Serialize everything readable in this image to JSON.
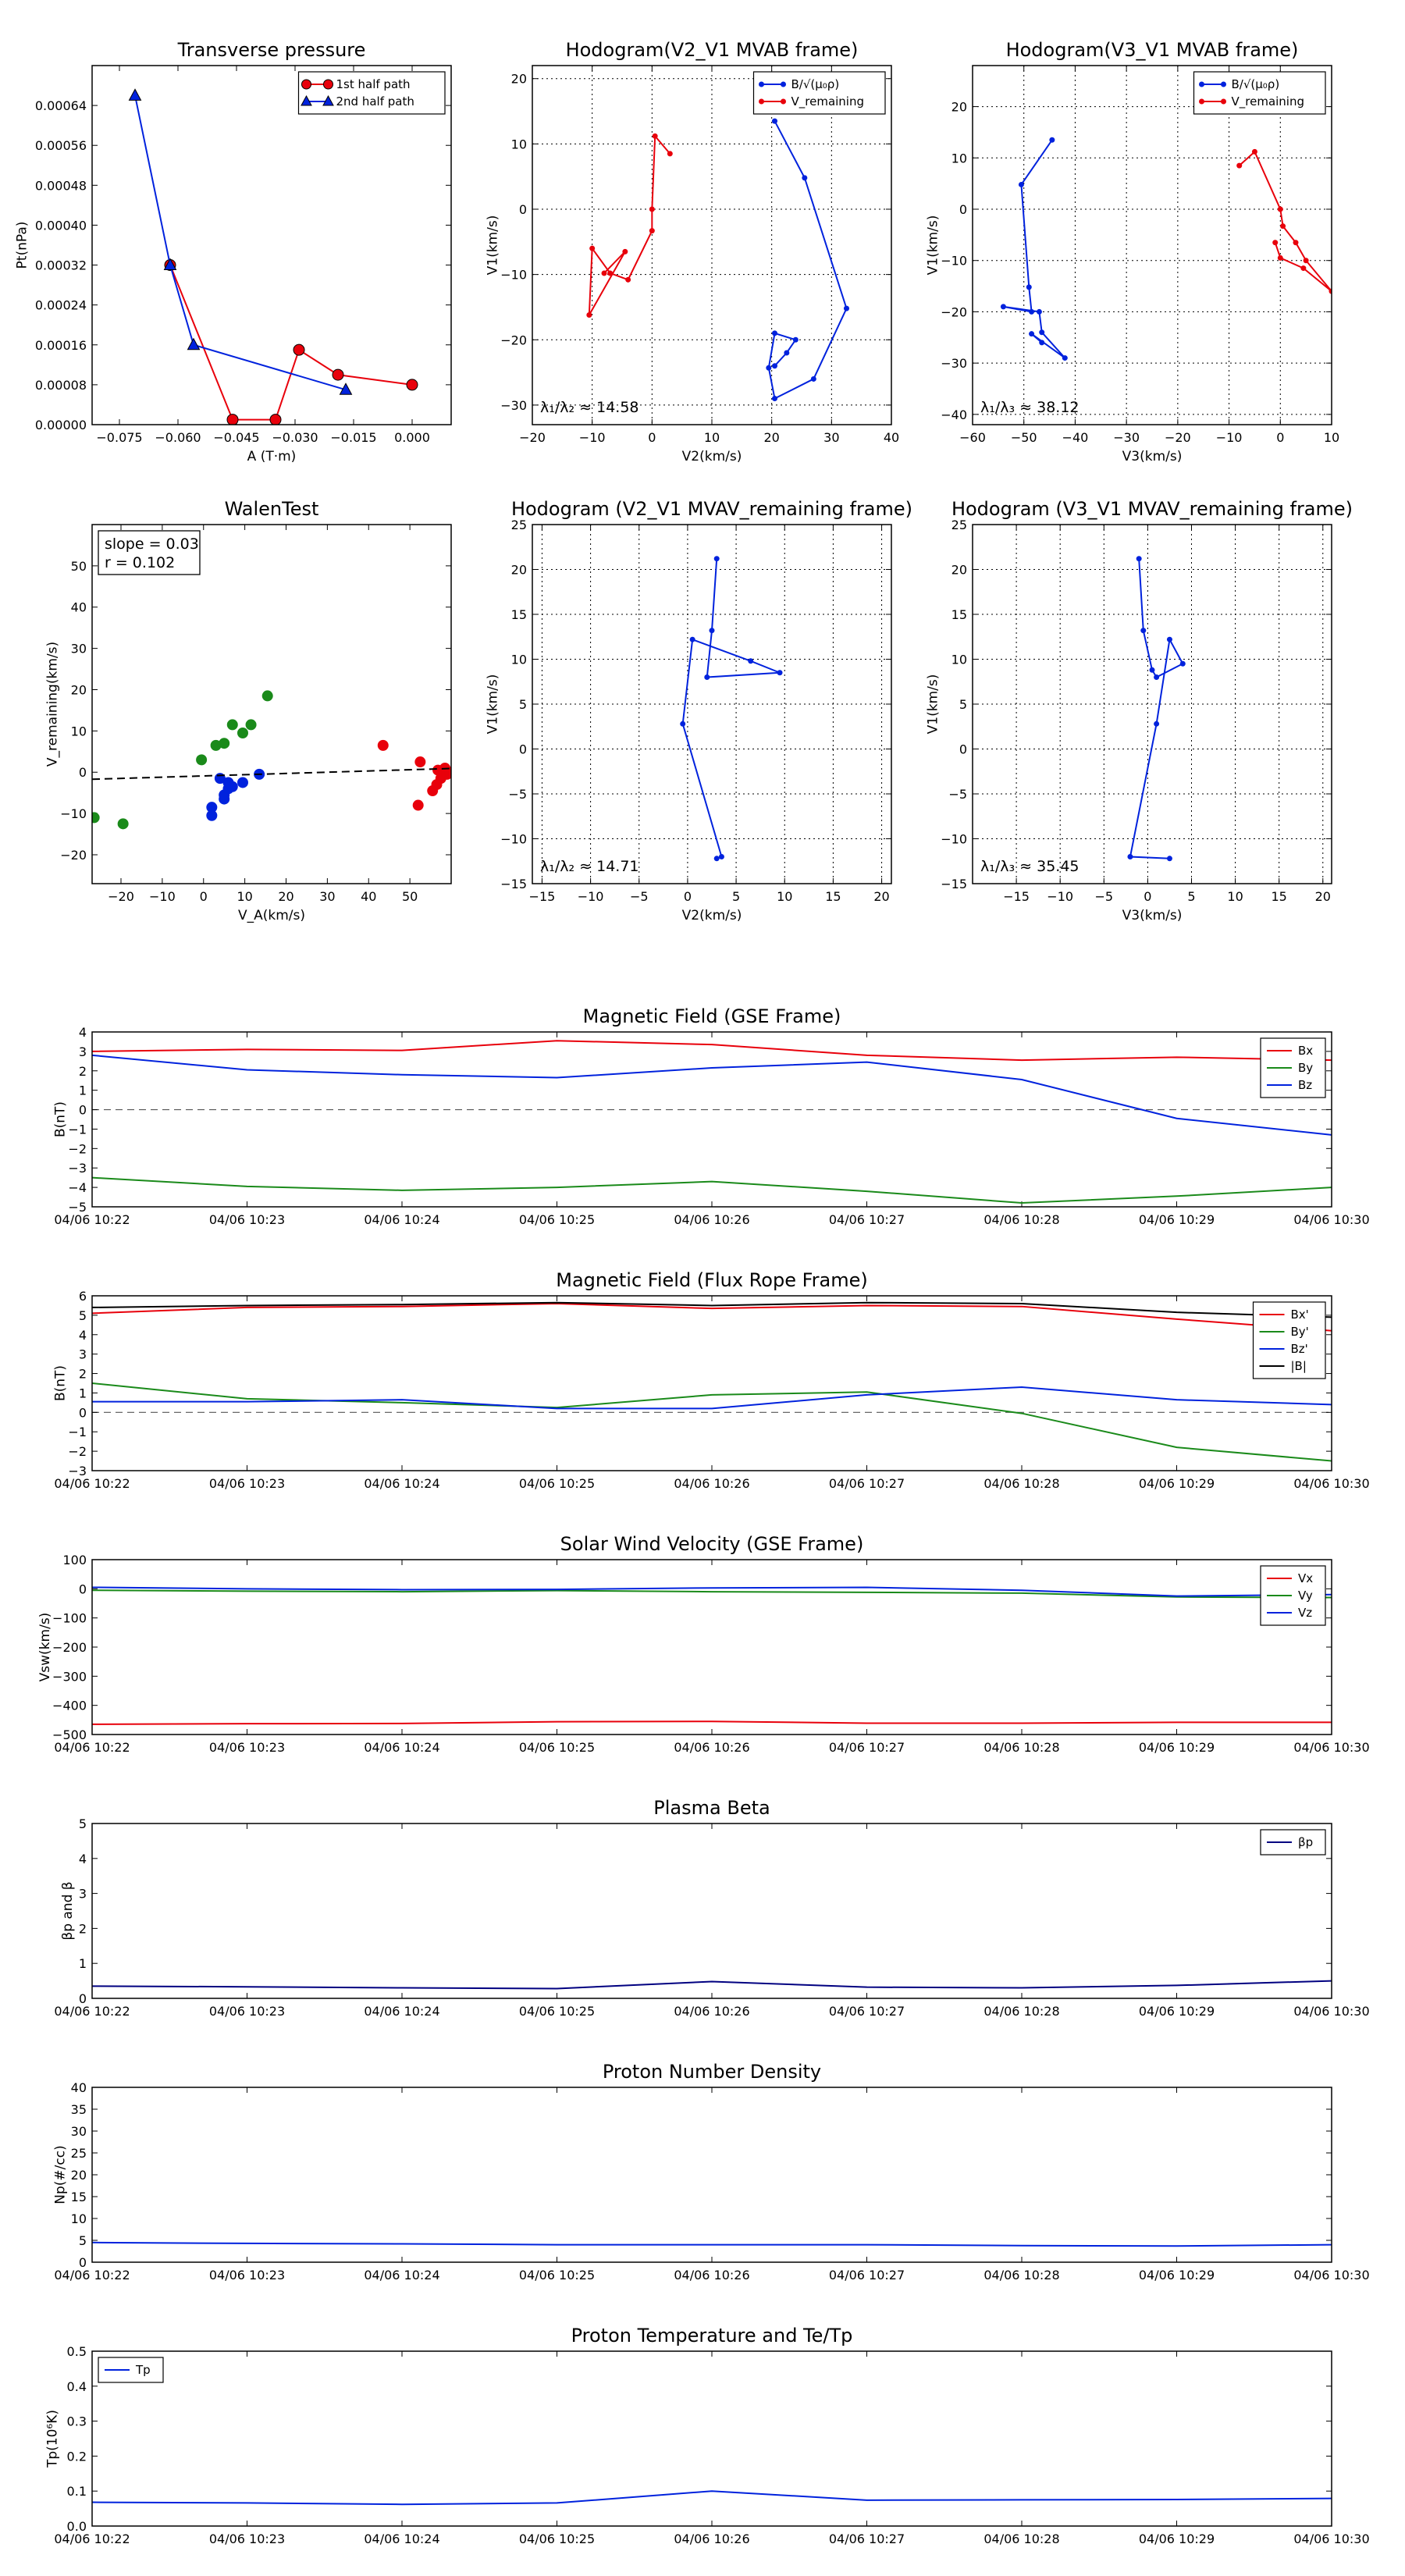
{
  "figure": {
    "background": "#ffffff"
  },
  "colors": {
    "red": "#e8000b",
    "blue": "#0022dd",
    "green": "#1a8a1a",
    "black": "#000000",
    "navy": "#000080"
  },
  "chart_data": [
    {
      "id": "tp",
      "type": "scatter",
      "title": "Transverse pressure",
      "xlabel": "A (T·m)",
      "ylabel": "Pt(nPa)",
      "xlim": [
        -0.082,
        0.01
      ],
      "ylim": [
        0,
        0.00072
      ],
      "xticks": [
        -0.075,
        -0.06,
        -0.045,
        -0.03,
        -0.015,
        0.0
      ],
      "xticklabels": [
        "−0.075",
        "−0.060",
        "−0.045",
        "−0.030",
        "−0.015",
        "0.000"
      ],
      "yticks": [
        0,
        8e-05,
        0.00016,
        0.00024,
        0.00032,
        0.0004,
        0.00048,
        0.00056,
        0.00064
      ],
      "yticklabels": [
        "0.00000",
        "0.00008",
        "0.00016",
        "0.00024",
        "0.00032",
        "0.00040",
        "0.00048",
        "0.00056",
        "0.00064"
      ],
      "grid": false,
      "legend": "top-right",
      "series": [
        {
          "name": "1st half path",
          "color": "#e8000b",
          "marker": "circle",
          "line": true,
          "x": [
            -0.062,
            -0.046,
            -0.035,
            -0.029,
            -0.019,
            0.0
          ],
          "y": [
            0.00032,
            1e-05,
            1e-05,
            0.00015,
            0.0001,
            8e-05
          ]
        },
        {
          "name": "2nd half path",
          "color": "#0022dd",
          "marker": "triangle",
          "line": true,
          "x": [
            -0.071,
            -0.062,
            -0.056,
            -0.017
          ],
          "y": [
            0.00066,
            0.00032,
            0.00016,
            7e-05
          ]
        }
      ]
    },
    {
      "id": "h1",
      "type": "line",
      "title": "Hodogram(V2_V1 MVAB frame)",
      "xlabel": "V2(km/s)",
      "ylabel": "V1(km/s)",
      "xlim": [
        -20,
        40
      ],
      "ylim": [
        -33,
        22
      ],
      "xticks": [
        -20,
        -10,
        0,
        10,
        20,
        30,
        40
      ],
      "xticklabels": [
        "−20",
        "−10",
        "0",
        "10",
        "20",
        "30",
        "40"
      ],
      "yticks": [
        -30,
        -20,
        -10,
        0,
        10,
        20
      ],
      "yticklabels": [
        "−30",
        "−20",
        "−10",
        "0",
        "10",
        "20"
      ],
      "grid": true,
      "legend": "top-right",
      "annotation": "λ₁/λ₂ ≈ 14.58",
      "series": [
        {
          "name": "B/√(μ₀ρ)",
          "color": "#0022dd",
          "marker": "dot",
          "x": [
            20.5,
            25.5,
            32.5,
            27.0,
            20.5,
            19.5,
            20.5,
            24.0,
            22.5,
            20.5
          ],
          "y": [
            13.5,
            4.8,
            -15.2,
            -26.0,
            -29.0,
            -24.3,
            -19.0,
            -20.0,
            -22.0,
            -24.0
          ]
        },
        {
          "name": "V_remaining",
          "color": "#e8000b",
          "marker": "dot",
          "x": [
            3.0,
            0.5,
            0.0,
            0.0,
            -4.0,
            -7.0,
            -10.0,
            -10.5,
            -4.5,
            -8.0
          ],
          "y": [
            8.5,
            11.2,
            0.0,
            -3.3,
            -10.8,
            -9.8,
            -6.0,
            -16.2,
            -6.5,
            -9.8
          ]
        }
      ]
    },
    {
      "id": "h2",
      "type": "line",
      "title": "Hodogram(V3_V1 MVAB frame)",
      "xlabel": "V3(km/s)",
      "ylabel": "V1(km/s)",
      "xlim": [
        -60,
        10
      ],
      "ylim": [
        -42,
        28
      ],
      "xticks": [
        -60,
        -50,
        -40,
        -30,
        -20,
        -10,
        0,
        10
      ],
      "xticklabels": [
        "−60",
        "−50",
        "−40",
        "−30",
        "−20",
        "−10",
        "0",
        "10"
      ],
      "yticks": [
        -40,
        -30,
        -20,
        -10,
        0,
        10,
        20
      ],
      "yticklabels": [
        "−40",
        "−30",
        "−20",
        "−10",
        "0",
        "10",
        "20"
      ],
      "grid": true,
      "legend": "top-right",
      "annotation": "λ₁/λ₃ ≈ 38.12",
      "series": [
        {
          "name": "B/√(μ₀ρ)",
          "color": "#0022dd",
          "marker": "dot",
          "x": [
            -44.5,
            -50.5,
            -49.0,
            -48.5,
            -54.0,
            -47.0,
            -46.5,
            -42.0,
            -48.5,
            -46.5
          ],
          "y": [
            13.5,
            4.8,
            -15.2,
            -20.0,
            -19.0,
            -20.0,
            -24.0,
            -29.0,
            -24.3,
            -26.0
          ]
        },
        {
          "name": "V_remaining",
          "color": "#e8000b",
          "marker": "dot",
          "x": [
            -8.0,
            -5.0,
            0.0,
            0.5,
            3.0,
            5.0,
            10.0,
            4.5,
            0.0,
            -1.0
          ],
          "y": [
            8.5,
            11.2,
            0.0,
            -3.3,
            -6.5,
            -10.0,
            -16.0,
            -11.5,
            -9.5,
            -6.5
          ]
        }
      ]
    },
    {
      "id": "walen",
      "type": "scatter",
      "title": "WalenTest",
      "xlabel": "V_A(km/s)",
      "ylabel": "V_remaining(km/s)",
      "xlim": [
        -27,
        60
      ],
      "ylim": [
        -27,
        60
      ],
      "xticks": [
        -20,
        -10,
        0,
        10,
        20,
        30,
        40,
        50
      ],
      "xticklabels": [
        "−20",
        "−10",
        "0",
        "10",
        "20",
        "30",
        "40",
        "50"
      ],
      "yticks": [
        -20,
        -10,
        0,
        10,
        20,
        30,
        40,
        50
      ],
      "yticklabels": [
        "−20",
        "−10",
        "0",
        "10",
        "20",
        "30",
        "40",
        "50"
      ],
      "grid": false,
      "annotation": [
        "slope = 0.03",
        "r = 0.102"
      ],
      "fit": {
        "slope": 0.03,
        "intercept": -0.9,
        "color": "#000000",
        "dash": true
      },
      "series": [
        {
          "name": "green",
          "color": "#1a8a1a",
          "x": [
            -26.5,
            -19.5,
            -0.5,
            3.0,
            5.0,
            7.0,
            9.5,
            11.5,
            15.5
          ],
          "y": [
            -11.0,
            -12.5,
            3.0,
            6.5,
            7.0,
            11.5,
            9.5,
            11.5,
            18.5
          ]
        },
        {
          "name": "blue",
          "color": "#0022dd",
          "x": [
            2.0,
            2.0,
            4.0,
            5.0,
            5.0,
            6.0,
            6.0,
            7.0,
            9.5,
            13.5
          ],
          "y": [
            -10.5,
            -8.5,
            -1.5,
            -6.5,
            -5.5,
            -4.0,
            -2.5,
            -3.5,
            -2.5,
            -0.5
          ]
        },
        {
          "name": "red",
          "color": "#e8000b",
          "x": [
            43.5,
            52.5,
            52.0,
            55.5,
            56.5,
            56.8,
            57.5,
            58.5,
            59.0,
            59.5
          ],
          "y": [
            6.5,
            2.5,
            -8.0,
            -4.5,
            -3.0,
            0.5,
            -1.5,
            1.0,
            -0.5,
            0.0
          ]
        }
      ]
    },
    {
      "id": "h3",
      "type": "line",
      "title": "Hodogram (V2_V1 MVAV_remaining frame)",
      "xlabel": "V2(km/s)",
      "ylabel": "V1(km/s)",
      "xlim": [
        -16,
        21
      ],
      "ylim": [
        -15,
        25
      ],
      "xticks": [
        -15,
        -10,
        -5,
        0,
        5,
        10,
        15,
        20
      ],
      "xticklabels": [
        "−15",
        "−10",
        "−5",
        "0",
        "5",
        "10",
        "15",
        "20"
      ],
      "yticks": [
        -15,
        -10,
        -5,
        0,
        5,
        10,
        15,
        20,
        25
      ],
      "yticklabels": [
        "−15",
        "−10",
        "−5",
        "0",
        "5",
        "10",
        "15",
        "20",
        "25"
      ],
      "grid": true,
      "annotation": "λ₁/λ₂ ≈ 14.71",
      "series": [
        {
          "name": "V_remaining",
          "color": "#0022dd",
          "marker": "dot",
          "x": [
            3.0,
            2.5,
            2.0,
            9.5,
            6.5,
            0.5,
            -0.5,
            3.5,
            3.0
          ],
          "y": [
            21.2,
            13.2,
            8.0,
            8.5,
            9.8,
            12.2,
            2.8,
            -12.0,
            -12.2
          ]
        }
      ]
    },
    {
      "id": "h4",
      "type": "line",
      "title": "Hodogram (V3_V1 MVAV_remaining frame)",
      "xlabel": "V3(km/s)",
      "ylabel": "V1(km/s)",
      "xlim": [
        -20,
        21
      ],
      "ylim": [
        -15,
        25
      ],
      "xticks": [
        -15,
        -10,
        -5,
        0,
        5,
        10,
        15,
        20
      ],
      "xticklabels": [
        "−15",
        "−10",
        "−5",
        "0",
        "5",
        "10",
        "15",
        "20"
      ],
      "yticks": [
        -15,
        -10,
        -5,
        0,
        5,
        10,
        15,
        20,
        25
      ],
      "yticklabels": [
        "−15",
        "−10",
        "−5",
        "0",
        "5",
        "10",
        "15",
        "20",
        "25"
      ],
      "grid": true,
      "annotation": "λ₁/λ₃ ≈ 35.45",
      "series": [
        {
          "name": "V_remaining",
          "color": "#0022dd",
          "marker": "dot",
          "x": [
            -1.0,
            -0.5,
            0.5,
            1.0,
            4.0,
            2.5,
            1.0,
            -2.0,
            2.5
          ],
          "y": [
            21.2,
            13.2,
            8.8,
            8.0,
            9.5,
            12.2,
            2.8,
            -12.0,
            -12.2
          ]
        }
      ]
    },
    {
      "id": "bgse",
      "type": "line",
      "title": "Magnetic Field (GSE Frame)",
      "ylabel": "B(nT)",
      "xlim": [
        0,
        8
      ],
      "ylim": [
        -5,
        4
      ],
      "yticks": [
        -5,
        -4,
        -3,
        -2,
        -1,
        0,
        1,
        2,
        3,
        4
      ],
      "yticklabels": [
        "−5",
        "−4",
        "−3",
        "−2",
        "−1",
        "0",
        "1",
        "2",
        "3",
        "4"
      ],
      "hline": 0,
      "grid": false,
      "legend": "top-right",
      "series": [
        {
          "name": "Bx",
          "color": "#e8000b",
          "values": [
            3.0,
            3.1,
            3.05,
            3.55,
            3.35,
            2.8,
            2.55,
            2.7,
            2.55
          ]
        },
        {
          "name": "By",
          "color": "#1a8a1a",
          "values": [
            -3.5,
            -3.95,
            -4.15,
            -4.0,
            -3.7,
            -4.2,
            -4.8,
            -4.45,
            -4.0
          ]
        },
        {
          "name": "Bz",
          "color": "#0022dd",
          "values": [
            2.8,
            2.05,
            1.8,
            1.65,
            2.15,
            2.45,
            1.55,
            -0.45,
            -1.3
          ]
        }
      ]
    },
    {
      "id": "bflux",
      "type": "line",
      "title": "Magnetic Field (Flux Rope Frame)",
      "ylabel": "B(nT)",
      "xlim": [
        0,
        8
      ],
      "ylim": [
        -3,
        6
      ],
      "yticks": [
        -3,
        -2,
        -1,
        0,
        1,
        2,
        3,
        4,
        5,
        6
      ],
      "yticklabels": [
        "−3",
        "−2",
        "−1",
        "0",
        "1",
        "2",
        "3",
        "4",
        "5",
        "6"
      ],
      "hline": 0,
      "grid": false,
      "legend": "top-right",
      "series": [
        {
          "name": "Bx'",
          "color": "#e8000b",
          "values": [
            5.1,
            5.4,
            5.45,
            5.6,
            5.35,
            5.5,
            5.45,
            4.8,
            4.2
          ]
        },
        {
          "name": "By'",
          "color": "#1a8a1a",
          "values": [
            1.5,
            0.7,
            0.5,
            0.25,
            0.9,
            1.05,
            -0.05,
            -1.8,
            -2.5
          ]
        },
        {
          "name": "Bz'",
          "color": "#0022dd",
          "values": [
            0.55,
            0.55,
            0.65,
            0.2,
            0.2,
            0.9,
            1.3,
            0.65,
            0.4
          ]
        },
        {
          "name": "|B|",
          "color": "#000000",
          "values": [
            5.4,
            5.5,
            5.55,
            5.65,
            5.5,
            5.65,
            5.6,
            5.15,
            4.9
          ]
        }
      ]
    },
    {
      "id": "vsw",
      "type": "line",
      "title": "Solar Wind Velocity (GSE Frame)",
      "ylabel": "Vsw(km/s)",
      "xlim": [
        0,
        8
      ],
      "ylim": [
        -500,
        100
      ],
      "yticks": [
        -500,
        -400,
        -300,
        -200,
        -100,
        0,
        100
      ],
      "yticklabels": [
        "−500",
        "−400",
        "−300",
        "−200",
        "−100",
        "0",
        "100"
      ],
      "grid": false,
      "legend": "top-right",
      "series": [
        {
          "name": "Vx",
          "color": "#e8000b",
          "values": [
            -465,
            -463,
            -462,
            -456,
            -455,
            -461,
            -461,
            -458,
            -458
          ]
        },
        {
          "name": "Vy",
          "color": "#1a8a1a",
          "values": [
            -5,
            -8,
            -10,
            -6,
            -10,
            -12,
            -15,
            -28,
            -30
          ]
        },
        {
          "name": "Vz",
          "color": "#0022dd",
          "values": [
            5,
            0,
            -3,
            -2,
            3,
            5,
            -5,
            -25,
            -20
          ]
        }
      ]
    },
    {
      "id": "beta",
      "type": "line",
      "title": "Plasma Beta",
      "ylabel": "βp and β",
      "xlim": [
        0,
        8
      ],
      "ylim": [
        0,
        5
      ],
      "yticks": [
        0,
        1,
        2,
        3,
        4,
        5
      ],
      "yticklabels": [
        "0",
        "1",
        "2",
        "3",
        "4",
        "5"
      ],
      "grid": false,
      "legend": "top-right",
      "series": [
        {
          "name": "βp",
          "color": "#000080",
          "values": [
            0.35,
            0.33,
            0.3,
            0.28,
            0.48,
            0.32,
            0.3,
            0.37,
            0.5
          ]
        }
      ]
    },
    {
      "id": "np",
      "type": "line",
      "title": "Proton Number Density",
      "ylabel": "Np(#/cc)",
      "xlim": [
        0,
        8
      ],
      "ylim": [
        0,
        40
      ],
      "yticks": [
        0,
        5,
        10,
        15,
        20,
        25,
        30,
        35,
        40
      ],
      "yticklabels": [
        "0",
        "5",
        "10",
        "15",
        "20",
        "25",
        "30",
        "35",
        "40"
      ],
      "grid": false,
      "series": [
        {
          "name": "Np",
          "color": "#0022dd",
          "values": [
            4.5,
            4.3,
            4.2,
            4.0,
            4.0,
            4.0,
            3.8,
            3.7,
            4.0
          ]
        }
      ]
    },
    {
      "id": "tpr",
      "type": "line",
      "title": "Proton Temperature and Te/Tp",
      "ylabel": "Tp(10⁶K)",
      "xlim": [
        0,
        8
      ],
      "ylim": [
        0,
        0.5
      ],
      "yticks": [
        0,
        0.1,
        0.2,
        0.3,
        0.4,
        0.5
      ],
      "yticklabels": [
        "0.0",
        "0.1",
        "0.2",
        "0.3",
        "0.4",
        "0.5"
      ],
      "grid": false,
      "legend": "top-left",
      "series": [
        {
          "name": "Tp",
          "color": "#0022dd",
          "values": [
            0.068,
            0.066,
            0.062,
            0.066,
            0.1,
            0.074,
            0.075,
            0.076,
            0.079
          ]
        }
      ]
    }
  ],
  "time_labels": [
    "04/06 10:22",
    "04/06 10:23",
    "04/06 10:24",
    "04/06 10:25",
    "04/06 10:26",
    "04/06 10:27",
    "04/06 10:28",
    "04/06 10:29",
    "04/06 10:30"
  ]
}
